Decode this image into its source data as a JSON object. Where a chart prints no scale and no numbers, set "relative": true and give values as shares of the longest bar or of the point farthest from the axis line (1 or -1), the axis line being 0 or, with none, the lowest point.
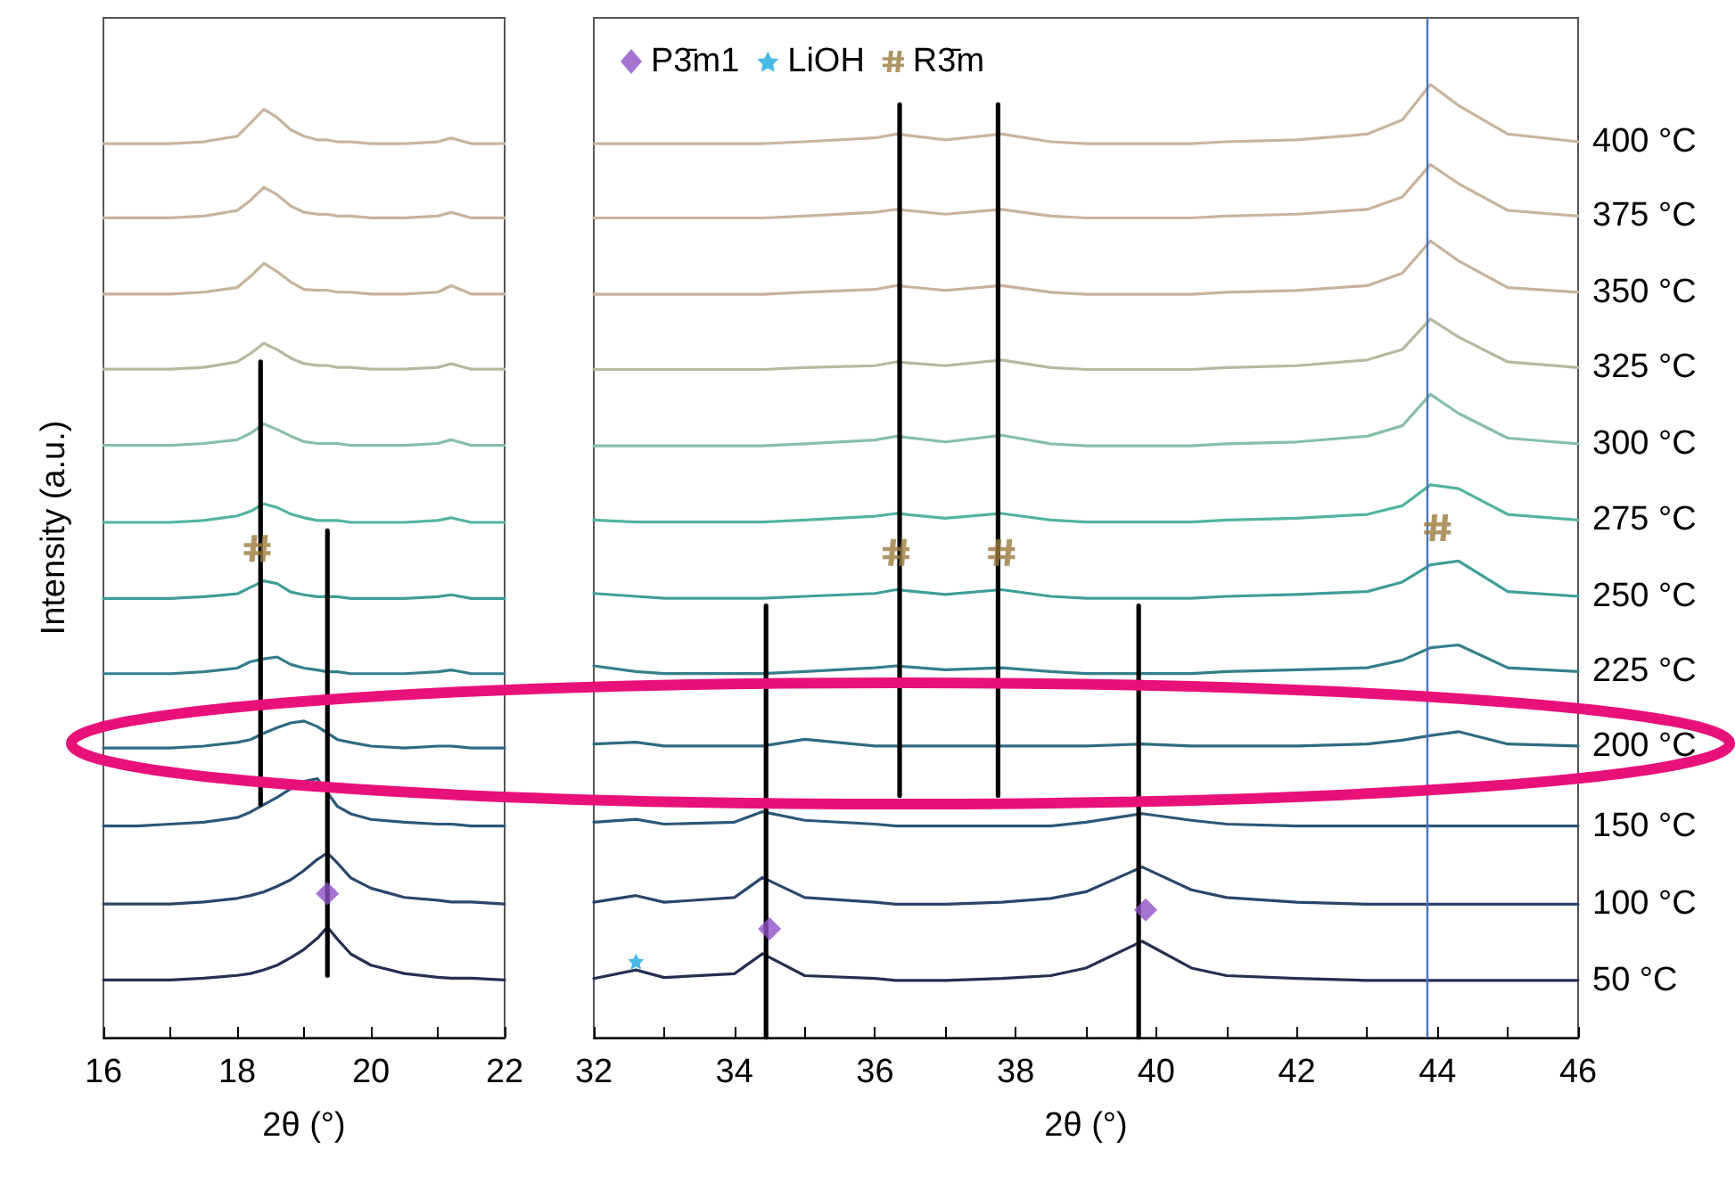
{
  "chart_data": [
    {
      "type": "line",
      "xlabel": "2θ (°)",
      "ylabel": "Intensity (a.u.)",
      "relative": true,
      "tick_labels": "x",
      "marker": "none",
      "line_style": "solid",
      "xlim": [
        16,
        22
      ],
      "xticks": [
        16,
        {
          "value": 17,
          "label": null
        },
        18,
        {
          "value": 19,
          "label": null
        },
        20,
        {
          "value": 21,
          "label": null
        },
        22
      ],
      "x": [
        16,
        16.5,
        17,
        17.5,
        18,
        18.2,
        18.4,
        18.6,
        18.8,
        19,
        19.2,
        19.35,
        19.5,
        19.7,
        20,
        20.5,
        21,
        21.2,
        21.5,
        22
      ],
      "series": [
        {
          "color": "#c9b49e",
          "values": [
            0.963,
            0.963,
            0.963,
            0.965,
            0.971,
            0.985,
            1.0,
            0.991,
            0.978,
            0.971,
            0.967,
            0.967,
            0.965,
            0.965,
            0.963,
            0.963,
            0.965,
            0.969,
            0.963,
            0.963
          ]
        },
        {
          "color": "#c8b39c",
          "values": [
            0.883,
            0.883,
            0.883,
            0.885,
            0.891,
            0.902,
            0.916,
            0.908,
            0.896,
            0.889,
            0.887,
            0.887,
            0.885,
            0.885,
            0.883,
            0.883,
            0.885,
            0.889,
            0.883,
            0.883
          ]
        },
        {
          "color": "#c7b29c",
          "values": [
            0.801,
            0.801,
            0.801,
            0.803,
            0.808,
            0.82,
            0.834,
            0.825,
            0.814,
            0.806,
            0.805,
            0.805,
            0.803,
            0.803,
            0.801,
            0.801,
            0.803,
            0.81,
            0.801,
            0.801
          ]
        },
        {
          "color": "#b5b9a0",
          "values": [
            0.72,
            0.72,
            0.72,
            0.722,
            0.728,
            0.737,
            0.748,
            0.741,
            0.732,
            0.726,
            0.724,
            0.724,
            0.722,
            0.722,
            0.72,
            0.72,
            0.722,
            0.726,
            0.72,
            0.72
          ]
        },
        {
          "color": "#86bfa6",
          "values": [
            0.638,
            0.638,
            0.638,
            0.64,
            0.644,
            0.651,
            0.661,
            0.655,
            0.648,
            0.642,
            0.64,
            0.64,
            0.64,
            0.638,
            0.638,
            0.638,
            0.64,
            0.644,
            0.638,
            0.638
          ]
        },
        {
          "color": "#52b4a0",
          "values": [
            0.555,
            0.555,
            0.555,
            0.557,
            0.562,
            0.567,
            0.575,
            0.571,
            0.564,
            0.56,
            0.557,
            0.557,
            0.557,
            0.555,
            0.555,
            0.555,
            0.557,
            0.56,
            0.555,
            0.555
          ]
        },
        {
          "color": "#3f9e97",
          "values": [
            0.473,
            0.473,
            0.473,
            0.475,
            0.478,
            0.485,
            0.492,
            0.489,
            0.48,
            0.477,
            0.475,
            0.475,
            0.475,
            0.473,
            0.473,
            0.473,
            0.475,
            0.477,
            0.473,
            0.473
          ]
        },
        {
          "color": "#357f8a",
          "values": [
            0.392,
            0.392,
            0.392,
            0.394,
            0.398,
            0.405,
            0.408,
            0.41,
            0.402,
            0.398,
            0.396,
            0.394,
            0.394,
            0.392,
            0.392,
            0.392,
            0.394,
            0.396,
            0.392,
            0.392
          ]
        },
        {
          "color": "#2f6a82",
          "values": [
            0.312,
            0.312,
            0.312,
            0.314,
            0.318,
            0.321,
            0.328,
            0.334,
            0.339,
            0.341,
            0.335,
            0.328,
            0.321,
            0.318,
            0.314,
            0.312,
            0.314,
            0.314,
            0.312,
            0.312
          ]
        },
        {
          "color": "#2c5778",
          "values": [
            0.228,
            0.228,
            0.23,
            0.232,
            0.237,
            0.243,
            0.251,
            0.259,
            0.268,
            0.276,
            0.279,
            0.264,
            0.249,
            0.241,
            0.235,
            0.232,
            0.23,
            0.23,
            0.228,
            0.228
          ]
        },
        {
          "color": "#2a456a",
          "values": [
            0.144,
            0.144,
            0.144,
            0.146,
            0.15,
            0.153,
            0.157,
            0.163,
            0.17,
            0.18,
            0.192,
            0.199,
            0.188,
            0.172,
            0.161,
            0.151,
            0.148,
            0.146,
            0.146,
            0.144
          ]
        },
        {
          "color": "#252f50",
          "values": [
            0.062,
            0.062,
            0.062,
            0.064,
            0.067,
            0.069,
            0.073,
            0.078,
            0.086,
            0.095,
            0.107,
            0.119,
            0.106,
            0.09,
            0.078,
            0.069,
            0.065,
            0.064,
            0.064,
            0.062
          ]
        },
        {
          "color": "#000000",
          "x": [
            18.35,
            18.35
          ],
          "values": [
            0.728,
            0.251
          ]
        },
        {
          "color": "#000000",
          "x": [
            19.35,
            19.35
          ],
          "values": [
            0.546,
            0.067
          ]
        },
        {
          "type": "scatter",
          "marker": "diamond",
          "color": "#8e50c6",
          "x": [
            19.35
          ],
          "values": [
            0.155
          ]
        },
        {
          "type": "scatter",
          "marker": "cross",
          "color": "#9a7b3c",
          "x": [
            18.3
          ],
          "values": [
            0.527
          ]
        }
      ]
    },
    {
      "type": "line",
      "xlabel": "2θ (°)",
      "relative": true,
      "tick_labels": "x",
      "marker": "none",
      "line_style": "solid",
      "legend": "top left",
      "xlim": [
        32,
        46
      ],
      "xticks": [
        32,
        {
          "value": 33,
          "label": null
        },
        34,
        {
          "value": 35,
          "label": null
        },
        36,
        {
          "value": 37,
          "label": null
        },
        38,
        {
          "value": 39,
          "label": null
        },
        40,
        {
          "value": 41,
          "label": null
        },
        42,
        {
          "value": 43,
          "label": null
        },
        44,
        {
          "value": 45,
          "label": null
        },
        46
      ],
      "x": [
        32,
        32.6,
        33,
        34,
        34.4,
        35,
        36,
        36.3,
        37,
        37.8,
        38.5,
        39,
        39.8,
        40.5,
        41,
        42,
        43,
        43.5,
        43.9,
        44.3,
        45,
        46
      ],
      "ref_lines": [
        {
          "axis": "x",
          "value": 43.85,
          "color": "#4a72c8"
        }
      ],
      "series": [
        {
          "name": "400 °C",
          "color": "#c9b49e",
          "values": [
            0.938,
            0.938,
            0.938,
            0.938,
            0.938,
            0.94,
            0.944,
            0.948,
            0.942,
            0.948,
            0.94,
            0.938,
            0.938,
            0.938,
            0.94,
            0.942,
            0.948,
            0.963,
            1.0,
            0.978,
            0.948,
            0.94
          ]
        },
        {
          "name": "375 °C",
          "color": "#c8b39c",
          "values": [
            0.86,
            0.86,
            0.86,
            0.86,
            0.86,
            0.862,
            0.866,
            0.869,
            0.864,
            0.869,
            0.862,
            0.86,
            0.86,
            0.86,
            0.862,
            0.864,
            0.869,
            0.882,
            0.916,
            0.896,
            0.868,
            0.862
          ]
        },
        {
          "name": "350 °C",
          "color": "#c7b29c",
          "values": [
            0.78,
            0.78,
            0.78,
            0.78,
            0.78,
            0.782,
            0.785,
            0.789,
            0.784,
            0.789,
            0.782,
            0.78,
            0.78,
            0.78,
            0.782,
            0.784,
            0.789,
            0.802,
            0.836,
            0.815,
            0.787,
            0.782
          ]
        },
        {
          "name": "325 °C",
          "color": "#b5b9a0",
          "values": [
            0.701,
            0.701,
            0.701,
            0.701,
            0.701,
            0.703,
            0.705,
            0.709,
            0.705,
            0.711,
            0.703,
            0.701,
            0.701,
            0.701,
            0.703,
            0.705,
            0.711,
            0.722,
            0.754,
            0.735,
            0.709,
            0.703
          ]
        },
        {
          "name": "300 °C",
          "color": "#86bfa6",
          "values": [
            0.621,
            0.621,
            0.621,
            0.621,
            0.621,
            0.623,
            0.627,
            0.631,
            0.625,
            0.632,
            0.623,
            0.621,
            0.621,
            0.621,
            0.623,
            0.625,
            0.631,
            0.642,
            0.675,
            0.655,
            0.629,
            0.623
          ]
        },
        {
          "name": "275 °C",
          "color": "#52b4a0",
          "values": [
            0.543,
            0.541,
            0.541,
            0.541,
            0.541,
            0.543,
            0.547,
            0.55,
            0.545,
            0.55,
            0.543,
            0.541,
            0.541,
            0.541,
            0.543,
            0.545,
            0.549,
            0.558,
            0.58,
            0.576,
            0.549,
            0.543
          ]
        },
        {
          "name": "250 °C",
          "color": "#3f9e97",
          "values": [
            0.466,
            0.463,
            0.461,
            0.461,
            0.461,
            0.463,
            0.466,
            0.47,
            0.465,
            0.47,
            0.463,
            0.461,
            0.461,
            0.461,
            0.463,
            0.465,
            0.468,
            0.478,
            0.496,
            0.5,
            0.468,
            0.463
          ]
        },
        {
          "name": "225 °C",
          "color": "#357f8a",
          "values": [
            0.39,
            0.384,
            0.382,
            0.382,
            0.382,
            0.384,
            0.388,
            0.39,
            0.386,
            0.388,
            0.384,
            0.382,
            0.382,
            0.382,
            0.384,
            0.386,
            0.388,
            0.396,
            0.409,
            0.412,
            0.388,
            0.384
          ]
        },
        {
          "name": "200 °C",
          "color": "#2f6a82",
          "values": [
            0.308,
            0.31,
            0.306,
            0.306,
            0.306,
            0.313,
            0.306,
            0.306,
            0.306,
            0.306,
            0.306,
            0.306,
            0.308,
            0.306,
            0.306,
            0.306,
            0.308,
            0.312,
            0.317,
            0.321,
            0.308,
            0.306
          ]
        },
        {
          "name": "150 °C",
          "color": "#2c5778",
          "values": [
            0.226,
            0.229,
            0.224,
            0.226,
            0.237,
            0.228,
            0.224,
            0.222,
            0.222,
            0.222,
            0.222,
            0.226,
            0.235,
            0.228,
            0.224,
            0.222,
            0.222,
            0.222,
            0.222,
            0.222,
            0.222,
            0.222
          ]
        },
        {
          "name": "100 °C",
          "color": "#2a456a",
          "values": [
            0.142,
            0.149,
            0.142,
            0.147,
            0.168,
            0.147,
            0.142,
            0.14,
            0.14,
            0.142,
            0.146,
            0.153,
            0.179,
            0.155,
            0.147,
            0.142,
            0.14,
            0.14,
            0.14,
            0.14,
            0.14,
            0.14
          ]
        },
        {
          "name": "50 °C",
          "color": "#252f50",
          "values": [
            0.062,
            0.071,
            0.063,
            0.067,
            0.088,
            0.065,
            0.062,
            0.06,
            0.06,
            0.062,
            0.065,
            0.073,
            0.101,
            0.073,
            0.065,
            0.062,
            0.06,
            0.06,
            0.06,
            0.06,
            0.06,
            0.06
          ]
        },
        {
          "color": "#000000",
          "x": [
            36.35,
            36.35
          ],
          "values": [
            0.979,
            0.254
          ]
        },
        {
          "color": "#000000",
          "x": [
            37.75,
            37.75
          ],
          "values": [
            0.979,
            0.254
          ]
        },
        {
          "color": "#000000",
          "x": [
            34.45,
            34.45
          ],
          "values": [
            0,
            0.453
          ]
        },
        {
          "color": "#000000",
          "x": [
            39.75,
            39.75
          ],
          "values": [
            0,
            0.453
          ]
        },
        {
          "type": "scatter",
          "name": "P3̄m1",
          "marker": "diamond",
          "color": "#8e50c6",
          "x": [
            34.5,
            39.85
          ],
          "values": [
            0.114,
            0.134
          ]
        },
        {
          "type": "scatter",
          "name": "LiOH",
          "marker": "star",
          "color": "#1ca7e0",
          "x": [
            32.6
          ],
          "values": [
            0.08
          ]
        },
        {
          "type": "scatter",
          "name": "R3̄m",
          "marker": "cross",
          "color": "#9a7b3c",
          "x": [
            36.3,
            37.8,
            44.0
          ],
          "values": [
            0.509,
            0.509,
            0.535
          ]
        }
      ]
    }
  ]
}
